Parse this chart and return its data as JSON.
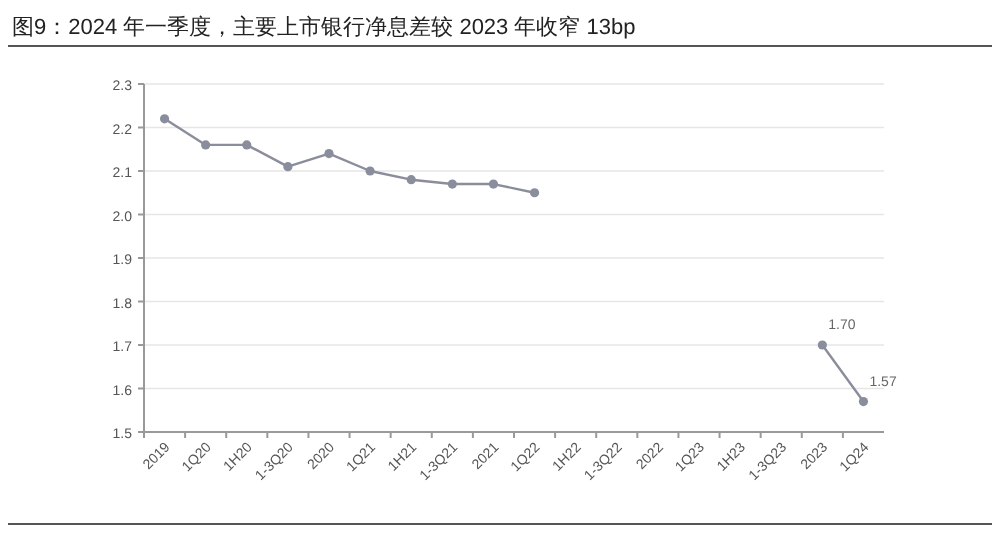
{
  "chart_data": {
    "type": "line",
    "title": "图9：2024 年一季度，主要上市银行净息差较 2023 年收窄 13bp",
    "categories": [
      "2019",
      "1Q20",
      "1H20",
      "1-3Q20",
      "2020",
      "1Q21",
      "1H21",
      "1-3Q21",
      "2021",
      "1Q22",
      "1H22",
      "1-3Q22",
      "2022",
      "1Q23",
      "1H23",
      "1-3Q23",
      "2023",
      "1Q24"
    ],
    "series": [
      {
        "color": "#8a8d9c",
        "values": [
          2.22,
          2.16,
          2.16,
          2.11,
          2.14,
          2.1,
          2.08,
          2.07,
          2.07,
          2.05,
          null,
          null,
          null,
          null,
          null,
          null,
          1.7,
          1.57
        ],
        "value_labels": [
          null,
          null,
          null,
          null,
          null,
          null,
          null,
          null,
          null,
          null,
          null,
          null,
          null,
          null,
          null,
          null,
          "1.70",
          "1.57"
        ]
      }
    ],
    "ylim": [
      1.5,
      2.3
    ],
    "yticks": [
      1.5,
      1.6,
      1.7,
      1.8,
      1.9,
      {
        "value": 2.0,
        "label": "2.0"
      },
      2.1,
      2.2,
      2.3
    ],
    "grid": "y",
    "marker": "circle",
    "line_style": "solid"
  }
}
